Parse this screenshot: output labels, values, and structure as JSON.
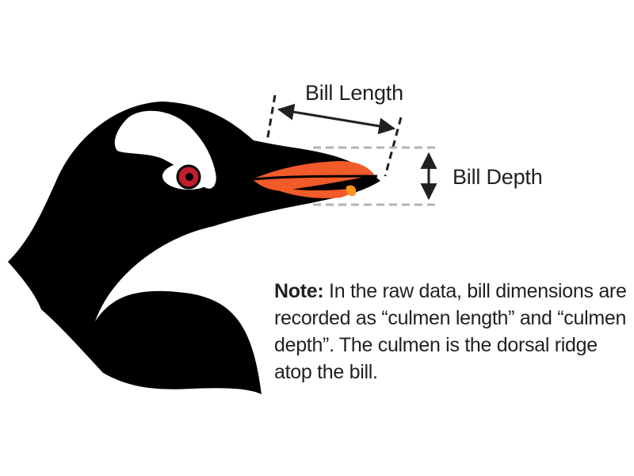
{
  "labels": {
    "bill_length": "Bill Length",
    "bill_depth": "Bill Depth"
  },
  "note": {
    "prefix": "Note:",
    "body": "In the raw data, bill dimensions are recorded as “culmen length” and “culmen depth”. The culmen is the dorsal ridge atop the bill."
  },
  "colors": {
    "head": "#000000",
    "bill": "#f15a29",
    "bill_highlight": "#f7941d",
    "eye_iris": "#be1e2d",
    "eye_white": "#ffffff",
    "measure_lines": "#231f20",
    "guide_lines": "#b3b3b3",
    "text": "#231f20"
  },
  "icons": {
    "head": "penguin-head-icon",
    "length_arrow": "double-headed-arrow",
    "depth_arrow": "double-headed-arrow-vertical"
  }
}
